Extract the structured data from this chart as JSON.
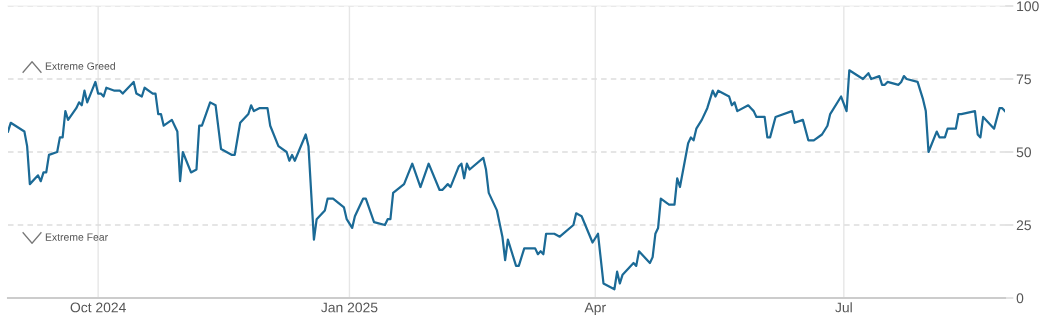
{
  "chart_data": {
    "type": "line",
    "x": [
      "2024-08-29",
      "2024-08-30",
      "2024-09-04",
      "2024-09-05",
      "2024-09-06",
      "2024-09-09",
      "2024-09-10",
      "2024-09-11",
      "2024-09-12",
      "2024-09-13",
      "2024-09-16",
      "2024-09-17",
      "2024-09-18",
      "2024-09-19",
      "2024-09-20",
      "2024-09-23",
      "2024-09-24",
      "2024-09-25",
      "2024-09-26",
      "2024-09-27",
      "2024-09-30",
      "2024-10-01",
      "2024-10-02",
      "2024-10-03",
      "2024-10-04",
      "2024-10-07",
      "2024-10-09",
      "2024-10-10",
      "2024-10-14",
      "2024-10-15",
      "2024-10-17",
      "2024-10-18",
      "2024-10-21",
      "2024-10-22",
      "2024-10-23",
      "2024-10-24",
      "2024-10-25",
      "2024-10-28",
      "2024-10-29",
      "2024-10-30",
      "2024-10-31",
      "2024-11-01",
      "2024-11-04",
      "2024-11-06",
      "2024-11-07",
      "2024-11-08",
      "2024-11-11",
      "2024-11-13",
      "2024-11-15",
      "2024-11-19",
      "2024-11-20",
      "2024-11-22",
      "2024-11-25",
      "2024-11-26",
      "2024-11-27",
      "2024-11-29",
      "2024-12-02",
      "2024-12-03",
      "2024-12-06",
      "2024-12-09",
      "2024-12-10",
      "2024-12-11",
      "2024-12-12",
      "2024-12-16",
      "2024-12-17",
      "2024-12-19",
      "2024-12-20",
      "2024-12-23",
      "2024-12-24",
      "2024-12-26",
      "2024-12-30",
      "2024-12-31",
      "2025-01-02",
      "2025-01-03",
      "2025-01-06",
      "2025-01-07",
      "2025-01-10",
      "2025-01-14",
      "2025-01-15",
      "2025-01-16",
      "2025-01-17",
      "2025-01-21",
      "2025-01-24",
      "2025-01-27",
      "2025-01-30",
      "2025-02-03",
      "2025-02-04",
      "2025-02-06",
      "2025-02-07",
      "2025-02-10",
      "2025-02-11",
      "2025-02-12",
      "2025-02-13",
      "2025-02-14",
      "2025-02-19",
      "2025-02-20",
      "2025-02-21",
      "2025-02-24",
      "2025-02-26",
      "2025-02-27",
      "2025-02-28",
      "2025-03-03",
      "2025-03-04",
      "2025-03-06",
      "2025-03-10",
      "2025-03-11",
      "2025-03-12",
      "2025-03-13",
      "2025-03-14",
      "2025-03-17",
      "2025-03-19",
      "2025-03-24",
      "2025-03-25",
      "2025-03-27",
      "2025-03-31",
      "2025-04-02",
      "2025-04-04",
      "2025-04-08",
      "2025-04-09",
      "2025-04-10",
      "2025-04-11",
      "2025-04-15",
      "2025-04-16",
      "2025-04-17",
      "2025-04-21",
      "2025-04-22",
      "2025-04-23",
      "2025-04-24",
      "2025-04-25",
      "2025-04-28",
      "2025-04-30",
      "2025-05-01",
      "2025-05-02",
      "2025-05-05",
      "2025-05-06",
      "2025-05-07",
      "2025-05-08",
      "2025-05-10",
      "2025-05-12",
      "2025-05-14",
      "2025-05-15",
      "2025-05-16",
      "2025-05-20",
      "2025-05-21",
      "2025-05-22",
      "2025-05-23",
      "2025-05-27",
      "2025-05-28",
      "2025-05-29",
      "2025-05-30",
      "2025-06-02",
      "2025-06-03",
      "2025-06-04",
      "2025-06-06",
      "2025-06-12",
      "2025-06-13",
      "2025-06-16",
      "2025-06-18",
      "2025-06-20",
      "2025-06-23",
      "2025-06-25",
      "2025-06-26",
      "2025-06-30",
      "2025-07-02",
      "2025-07-03",
      "2025-07-08",
      "2025-07-10",
      "2025-07-11",
      "2025-07-14",
      "2025-07-15",
      "2025-07-16",
      "2025-07-17",
      "2025-07-21",
      "2025-07-22",
      "2025-07-23",
      "2025-07-24",
      "2025-07-28",
      "2025-07-30",
      "2025-07-31",
      "2025-08-01",
      "2025-08-04",
      "2025-08-05",
      "2025-08-07",
      "2025-08-08",
      "2025-08-11",
      "2025-08-12",
      "2025-08-13",
      "2025-08-18",
      "2025-08-19",
      "2025-08-20",
      "2025-08-21",
      "2025-08-25",
      "2025-08-27",
      "2025-08-28",
      "2025-08-29"
    ],
    "series": [
      {
        "color": "#1b6a96",
        "values": [
          57,
          60,
          57,
          52,
          39,
          42,
          40,
          43,
          43,
          49,
          50,
          55,
          55,
          64,
          61,
          65,
          67,
          66,
          71,
          67,
          74,
          70,
          70,
          69,
          72,
          71,
          71,
          70,
          74,
          70,
          69,
          72,
          70,
          70,
          63,
          63,
          59,
          61,
          59,
          57,
          40,
          50,
          43,
          44,
          59,
          59,
          67,
          66,
          51,
          49,
          49,
          60,
          63,
          66,
          64,
          65,
          65,
          59,
          52,
          50,
          47,
          49,
          47,
          56,
          52,
          20,
          27,
          30,
          34,
          34,
          31,
          27,
          24,
          28,
          34,
          34,
          26,
          25,
          27,
          27,
          36,
          39,
          46,
          38,
          46,
          37,
          37,
          39,
          38,
          45,
          46,
          41,
          46,
          44,
          48,
          44,
          36,
          30,
          21,
          13,
          20,
          11,
          11,
          17,
          17,
          15,
          16,
          15,
          22,
          22,
          21,
          25,
          29,
          28,
          19,
          22,
          5,
          3,
          9,
          5,
          8,
          12,
          11,
          16,
          12,
          14,
          22,
          24,
          34,
          32,
          32,
          41,
          38,
          53,
          55,
          54,
          58,
          61,
          65,
          71,
          69,
          71,
          69,
          66,
          67,
          64,
          66,
          65,
          64,
          62,
          62,
          55,
          55,
          62,
          64,
          60,
          61,
          54,
          54,
          56,
          59,
          63,
          69,
          64,
          78,
          75,
          77,
          75,
          76,
          73,
          73,
          74,
          73,
          74,
          76,
          75,
          74,
          68,
          64,
          50,
          57,
          55,
          55,
          58,
          58,
          63,
          63,
          64,
          56,
          55,
          62,
          58,
          65,
          65,
          64
        ]
      }
    ],
    "xlim": [
      "2024-08-29",
      "2025-08-29"
    ],
    "xticks": [
      {
        "value": "2024-10-01",
        "label": "Oct 2024"
      },
      {
        "value": "2025-01-01",
        "label": "Jan 2025"
      },
      {
        "value": "2025-04-01",
        "label": "Apr"
      },
      {
        "value": "2025-07-01",
        "label": "Jul"
      }
    ],
    "ylim": [
      0,
      100
    ],
    "yticks": [
      0,
      25,
      50,
      75,
      100
    ],
    "grid": true,
    "marker": "none",
    "line_style": "solid",
    "annotations": [
      "Extreme Greed",
      "Extreme Fear"
    ]
  }
}
